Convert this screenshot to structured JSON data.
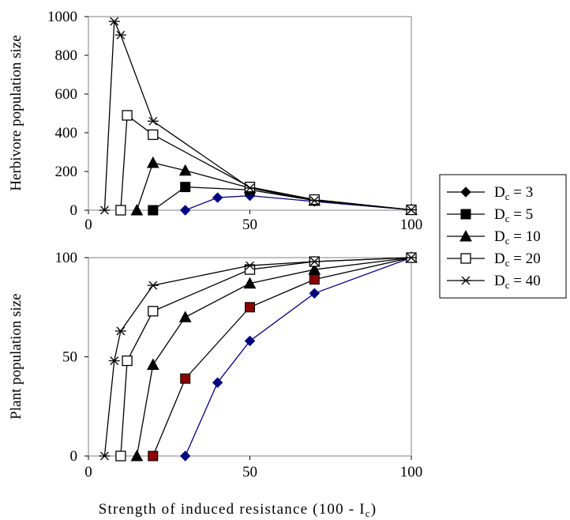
{
  "chart_data": [
    {
      "type": "line",
      "ylabel": "Herbivore population size",
      "xlim": [
        0,
        100
      ],
      "ylim": [
        0,
        1000
      ],
      "xticks": [
        "0",
        "50",
        "100"
      ],
      "yticks": [
        "0",
        "200",
        "400",
        "600",
        "800",
        "1000"
      ],
      "series": [
        {
          "name": "D",
          "subscript": "c",
          "value_label": " = 3",
          "marker": "diamond",
          "color": "#000080",
          "x": [
            30,
            40,
            50,
            70,
            100
          ],
          "y": [
            0,
            65,
            75,
            45,
            2
          ]
        },
        {
          "name": "D",
          "subscript": "c",
          "value_label": " = 5",
          "marker": "square",
          "color": "#000000",
          "x": [
            20,
            30,
            50,
            70,
            100
          ],
          "y": [
            0,
            120,
            105,
            50,
            2
          ]
        },
        {
          "name": "D",
          "subscript": "c",
          "value_label": " = 10",
          "marker": "triangle",
          "color": "#000000",
          "x": [
            15,
            20,
            30,
            50,
            70,
            100
          ],
          "y": [
            0,
            245,
            205,
            115,
            50,
            2
          ]
        },
        {
          "name": "D",
          "subscript": "c",
          "value_label": " = 20",
          "marker": "open-square",
          "color": "#000000",
          "x": [
            10,
            12,
            20,
            50,
            70,
            100
          ],
          "y": [
            0,
            490,
            390,
            120,
            55,
            2
          ]
        },
        {
          "name": "D",
          "subscript": "c",
          "value_label": " = 40",
          "marker": "asterisk",
          "color": "#000000",
          "x": [
            5,
            8,
            10,
            20,
            50,
            70,
            100
          ],
          "y": [
            0,
            975,
            905,
            460,
            115,
            50,
            2
          ]
        }
      ]
    },
    {
      "type": "line",
      "ylabel": "Plant population size",
      "xlabel": "Strength of induced resistance (100 - I",
      "xlabel_subscript": "c",
      "xlabel_suffix": ")",
      "xlim": [
        0,
        100
      ],
      "ylim": [
        0,
        100
      ],
      "xticks": [
        "0",
        "50",
        "100"
      ],
      "yticks": [
        "0",
        "50",
        "100"
      ],
      "series": [
        {
          "name": "D",
          "subscript": "c",
          "value_label": " = 3",
          "marker": "diamond",
          "color": "#000080",
          "x": [
            30,
            40,
            50,
            70,
            100
          ],
          "y": [
            0,
            37,
            58,
            82,
            100
          ]
        },
        {
          "name": "D",
          "subscript": "c",
          "value_label": " = 5",
          "marker": "square",
          "color": "#000000",
          "marker_fill": "#8b0000",
          "x": [
            20,
            30,
            50,
            70,
            100
          ],
          "y": [
            0,
            39,
            75,
            89,
            100
          ]
        },
        {
          "name": "D",
          "subscript": "c",
          "value_label": " = 10",
          "marker": "triangle",
          "color": "#000000",
          "x": [
            15,
            20,
            30,
            50,
            70,
            100
          ],
          "y": [
            0,
            46,
            70,
            87,
            94,
            100
          ]
        },
        {
          "name": "D",
          "subscript": "c",
          "value_label": " = 20",
          "marker": "open-square",
          "color": "#000000",
          "x": [
            10,
            12,
            20,
            50,
            70,
            100
          ],
          "y": [
            0,
            48,
            73,
            94,
            98,
            100
          ]
        },
        {
          "name": "D",
          "subscript": "c",
          "value_label": " = 40",
          "marker": "asterisk",
          "color": "#000000",
          "x": [
            5,
            8,
            10,
            20,
            50,
            70,
            100
          ],
          "y": [
            0,
            48,
            63,
            86,
            96,
            98,
            100
          ]
        }
      ]
    }
  ],
  "legend": {
    "position": "right",
    "entries": [
      {
        "name": "D",
        "subscript": "c",
        "value_label": " = 3",
        "marker": "diamond"
      },
      {
        "name": "D",
        "subscript": "c",
        "value_label": " = 5",
        "marker": "square"
      },
      {
        "name": "D",
        "subscript": "c",
        "value_label": " = 10",
        "marker": "triangle"
      },
      {
        "name": "D",
        "subscript": "c",
        "value_label": " = 20",
        "marker": "open-square"
      },
      {
        "name": "D",
        "subscript": "c",
        "value_label": " = 40",
        "marker": "asterisk"
      }
    ]
  }
}
